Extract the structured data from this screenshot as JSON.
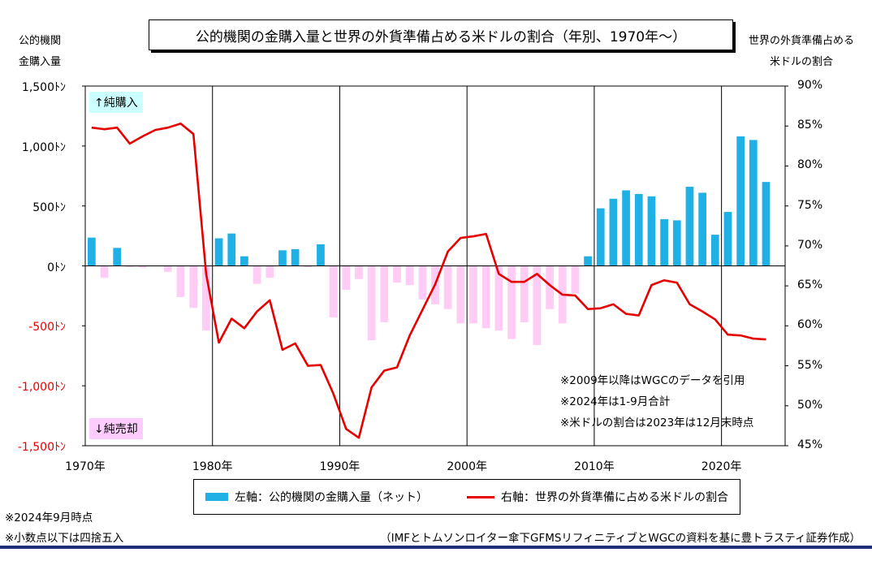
{
  "title": "公的機関の金購入量と世界の外貨準備占める米ドルの割合（年別、1970年～）",
  "left_axis_title": [
    "公的機関",
    "金購入量"
  ],
  "right_axis_title": [
    "世界の外貨準備占める",
    "米ドルの割合"
  ],
  "left_ticks": [
    "1,500ﾄﾝ",
    "1,000ﾄﾝ",
    "500ﾄﾝ",
    "0ﾄﾝ",
    "-500ﾄﾝ",
    "-1,000ﾄﾝ",
    "-1,500ﾄﾝ"
  ],
  "right_ticks": [
    "90%",
    "85%",
    "80%",
    "75%",
    "70%",
    "65%",
    "60%",
    "55%",
    "50%",
    "45%"
  ],
  "x_ticks": [
    "1970年",
    "1980年",
    "1990年",
    "2000年",
    "2010年",
    "2020年"
  ],
  "badge_up": "↑純購入",
  "badge_down": "↓純売却",
  "notes": [
    "※2009年以降はWGCのデータを引用",
    "※2024年は1-9月合計",
    "※米ドルの割合は2023年は12月末時点"
  ],
  "legend": {
    "bar": "左軸：公的機関の金購入量（ネット）",
    "line": "右軸：世界の外貨準備に占める米ドルの割合"
  },
  "footnotes": [
    "※2024年9月時点",
    "※小数点以下は四捨五入"
  ],
  "source": "（IMFとトムソンロイター傘下GFMSリフィニティブとWGCの資料を基に豊トラスティ証券作成）",
  "colors": {
    "buy": "#1fb0e6",
    "sell": "#ffccf5",
    "line": "#e60000",
    "negative_tick": "#e60000"
  },
  "chart_data": {
    "type": "bar+line",
    "x_years": [
      1970,
      1971,
      1972,
      1973,
      1974,
      1975,
      1976,
      1977,
      1978,
      1979,
      1980,
      1981,
      1982,
      1983,
      1984,
      1985,
      1986,
      1987,
      1988,
      1989,
      1990,
      1991,
      1992,
      1993,
      1994,
      1995,
      1996,
      1997,
      1998,
      1999,
      2000,
      2001,
      2002,
      2003,
      2004,
      2005,
      2006,
      2007,
      2008,
      2009,
      2010,
      2011,
      2012,
      2013,
      2014,
      2015,
      2016,
      2017,
      2018,
      2019,
      2020,
      2021,
      2022,
      2023,
      2024
    ],
    "series": [
      {
        "name": "左軸：公的機関の金購入量（ネット）",
        "axis": "left",
        "type": "bar",
        "values": [
          236,
          -100,
          150,
          -10,
          -15,
          0,
          -50,
          -260,
          -350,
          -540,
          230,
          270,
          80,
          -150,
          -100,
          130,
          140,
          -10,
          180,
          -430,
          -200,
          -110,
          -620,
          -470,
          -140,
          -160,
          -280,
          -320,
          -360,
          -480,
          -480,
          -520,
          -540,
          -610,
          -470,
          -660,
          -360,
          -480,
          -230,
          80,
          480,
          560,
          630,
          600,
          580,
          390,
          380,
          660,
          610,
          260,
          450,
          1080,
          1050,
          700,
          0
        ],
        "ylim": [
          -1500,
          1500
        ]
      },
      {
        "name": "右軸：世界の外貨準備に占める米ドルの割合",
        "axis": "right",
        "type": "line",
        "x": [
          1970,
          1971,
          1972,
          1973,
          1974,
          1975,
          1976,
          1977,
          1978,
          1979,
          1980,
          1981,
          1982,
          1983,
          1984,
          1985,
          1986,
          1987,
          1988,
          1989,
          1990,
          1991,
          1992,
          1993,
          1994,
          1995,
          1996,
          1997,
          1998,
          1999,
          2000,
          2001,
          2002,
          2003,
          2004,
          2005,
          2006,
          2007,
          2008,
          2009,
          2010,
          2011,
          2012,
          2013,
          2014,
          2015,
          2016,
          2017,
          2018,
          2019,
          2020,
          2021,
          2022,
          2023
        ],
        "values": [
          84.8,
          84.6,
          84.8,
          82.8,
          83.7,
          84.5,
          84.8,
          85.3,
          84.0,
          66.5,
          57.9,
          60.9,
          59.7,
          61.8,
          63.2,
          57.0,
          57.8,
          55.0,
          55.1,
          51.5,
          47.1,
          46.0,
          52.3,
          54.4,
          54.8,
          58.8,
          62.0,
          65.2,
          69.3,
          71.0,
          71.2,
          71.5,
          66.5,
          65.5,
          65.5,
          66.5,
          65.1,
          63.9,
          63.8,
          62.1,
          62.2,
          62.7,
          61.5,
          61.3,
          65.1,
          65.7,
          65.4,
          62.7,
          61.8,
          60.8,
          58.9,
          58.8,
          58.4,
          58.3
        ],
        "ylim": [
          45,
          90
        ]
      }
    ],
    "xlim": [
      1970,
      2025
    ],
    "grid": "vertical lines every 10 years"
  }
}
